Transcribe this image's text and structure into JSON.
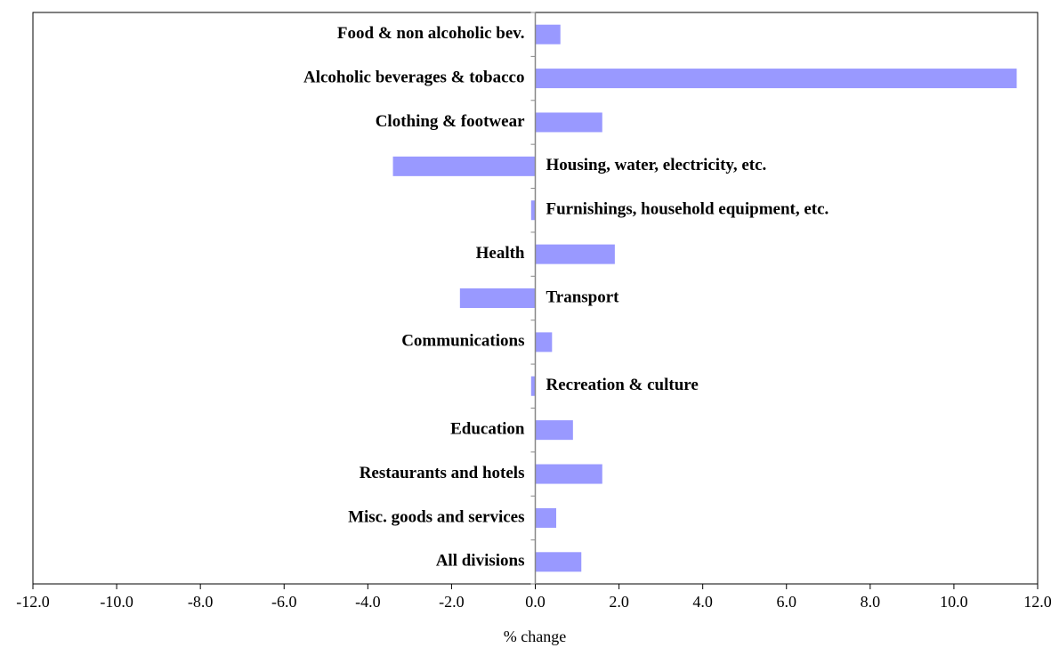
{
  "chart_data": {
    "type": "barh",
    "x_label": "% change",
    "categories": [
      "Food & non alcoholic bev.",
      "Alcoholic beverages & tobacco",
      "Clothing & footwear",
      "Housing, water, electricity, etc.",
      "Furnishings, household equipment,  etc.",
      "Health",
      "Transport",
      "Communications",
      "Recreation  & culture",
      "Education",
      "Restaurants and hotels",
      "Misc. goods and services",
      "All divisions"
    ],
    "values": [
      0.6,
      11.5,
      1.6,
      -3.4,
      -0.1,
      1.9,
      -1.8,
      0.4,
      -0.1,
      0.9,
      1.6,
      0.5,
      1.1
    ],
    "color": "#9999ff",
    "xlim": [
      -12,
      12
    ],
    "xticks": [
      {
        "value": -12,
        "label": "-12.0"
      },
      {
        "value": -10,
        "label": "-10.0"
      },
      {
        "value": -8,
        "label": "-8.0"
      },
      {
        "value": -6,
        "label": "-6.0"
      },
      {
        "value": -4,
        "label": "-4.0"
      },
      {
        "value": -2,
        "label": "-2.0"
      },
      {
        "value": 0,
        "label": "0.0"
      },
      {
        "value": 2,
        "label": "2.0"
      },
      {
        "value": 4,
        "label": "4.0"
      },
      {
        "value": 6,
        "label": "6.0"
      },
      {
        "value": 8,
        "label": "8.0"
      },
      {
        "value": 10,
        "label": "10.0"
      },
      {
        "value": 12,
        "label": "12.0"
      }
    ],
    "grid": false
  }
}
